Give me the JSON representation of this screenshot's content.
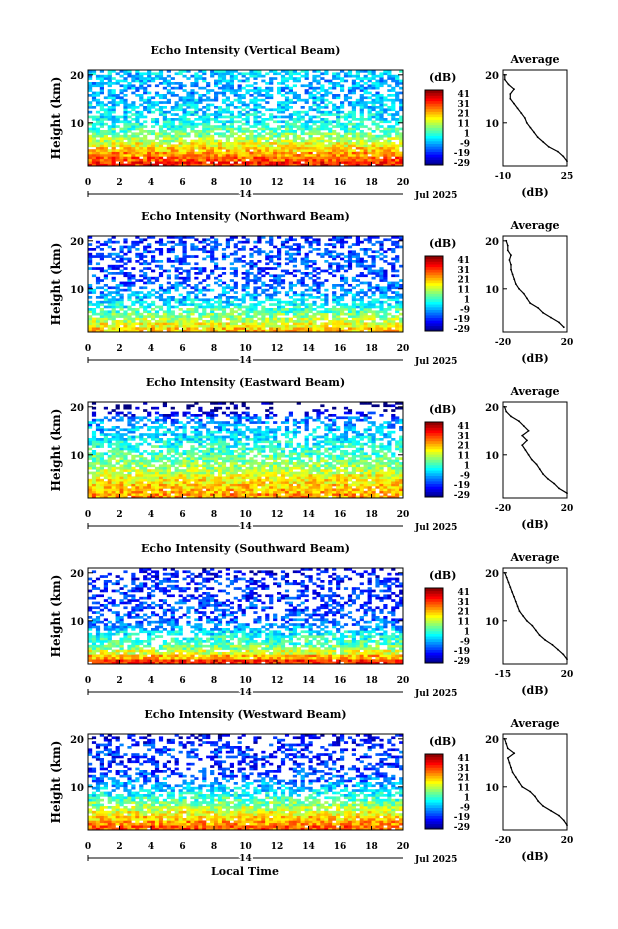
{
  "colorbar": {
    "unit": "(dB)",
    "ticks": [
      "41",
      "31",
      "21",
      "11",
      "1",
      "-9",
      "-19",
      "-29"
    ]
  },
  "shared": {
    "date": "Jul 2025",
    "day": "14",
    "x_label": "Local Time",
    "y_label": "Height (km)",
    "avg_title": "Average",
    "avg_xlabel": "(dB)"
  },
  "chart_data": [
    {
      "type": "heatmap",
      "title": "Echo Intensity (Vertical Beam)",
      "xlabel": "",
      "ylabel": "Height (km)",
      "x_ticks": [
        0,
        2,
        4,
        6,
        8,
        10,
        12,
        14,
        16,
        18,
        20
      ],
      "y_ticks": [
        10,
        20
      ],
      "xlim": [
        0,
        20
      ],
      "ylim": [
        1,
        21
      ],
      "color_range_db": [
        -29,
        41
      ],
      "profile_levels_db": [
        30,
        26,
        22,
        18,
        14,
        10,
        6,
        2,
        -1,
        -3,
        -4,
        -5,
        -6,
        -7,
        -8,
        -9,
        -9,
        -8,
        -7,
        -6
      ],
      "average": {
        "title": "Average",
        "xlabel": "(dB)",
        "x_ticks": [
          -10,
          25
        ],
        "xlim": [
          -10,
          25
        ],
        "y_ticks": [
          10,
          20
        ],
        "ylim": [
          1,
          21
        ],
        "height_km": [
          2,
          3,
          4,
          5,
          6,
          7,
          8,
          9,
          10,
          11,
          12,
          13,
          14,
          15,
          16,
          17,
          18,
          19,
          20
        ],
        "value_db": [
          25,
          23,
          20,
          15,
          12,
          9,
          7,
          5,
          3,
          2,
          0,
          -2,
          -4,
          -6,
          -6,
          -4,
          -7,
          -9,
          -9
        ]
      }
    },
    {
      "type": "heatmap",
      "title": "Echo Intensity (Northward Beam)",
      "xlabel": "",
      "ylabel": "Height (km)",
      "x_ticks": [
        0,
        2,
        4,
        6,
        8,
        10,
        12,
        14,
        16,
        18,
        20
      ],
      "y_ticks": [
        10,
        20
      ],
      "xlim": [
        0,
        20
      ],
      "ylim": [
        1,
        21
      ],
      "color_range_db": [
        -29,
        41
      ],
      "profile_levels_db": [
        18,
        14,
        10,
        6,
        2,
        -2,
        -5,
        -8,
        -10,
        -12,
        -14,
        -15,
        -16,
        -16,
        -15,
        -14,
        -15,
        -16,
        -17,
        -18
      ],
      "average": {
        "title": "Average",
        "xlabel": "(dB)",
        "x_ticks": [
          -20,
          20
        ],
        "xlim": [
          -20,
          20
        ],
        "y_ticks": [
          10,
          20
        ],
        "ylim": [
          1,
          21
        ],
        "height_km": [
          2,
          3,
          4,
          5,
          6,
          7,
          8,
          9,
          10,
          11,
          12,
          13,
          14,
          15,
          16,
          17,
          18,
          19,
          20
        ],
        "value_db": [
          18,
          15,
          10,
          5,
          2,
          -3,
          -5,
          -7,
          -10,
          -12,
          -13,
          -14,
          -15,
          -15,
          -16,
          -15,
          -17,
          -17,
          -18
        ]
      }
    },
    {
      "type": "heatmap",
      "title": "Echo Intensity (Eastward Beam)",
      "xlabel": "",
      "ylabel": "Height (km)",
      "x_ticks": [
        0,
        2,
        4,
        6,
        8,
        10,
        12,
        14,
        16,
        18,
        20
      ],
      "y_ticks": [
        10,
        20
      ],
      "xlim": [
        0,
        20
      ],
      "ylim": [
        1,
        21
      ],
      "color_range_db": [
        -29,
        41
      ],
      "profile_levels_db": [
        22,
        20,
        18,
        16,
        14,
        10,
        8,
        6,
        4,
        2,
        0,
        -2,
        -4,
        -6,
        -8,
        -10,
        -12,
        -20,
        -29,
        -29
      ],
      "average": {
        "title": "Average",
        "xlabel": "(dB)",
        "x_ticks": [
          -20,
          20
        ],
        "xlim": [
          -20,
          20
        ],
        "y_ticks": [
          10,
          20
        ],
        "ylim": [
          1,
          21
        ],
        "height_km": [
          2,
          3,
          4,
          5,
          6,
          7,
          8,
          9,
          10,
          11,
          12,
          13,
          14,
          15,
          16,
          17,
          18,
          19,
          20
        ],
        "value_db": [
          20,
          15,
          12,
          8,
          5,
          3,
          1,
          -2,
          -4,
          -6,
          -8,
          -5,
          -8,
          -4,
          -7,
          -10,
          -15,
          -18,
          -19
        ]
      }
    },
    {
      "type": "heatmap",
      "title": "Echo Intensity (Southward Beam)",
      "xlabel": "",
      "ylabel": "Height (km)",
      "x_ticks": [
        0,
        2,
        4,
        6,
        8,
        10,
        12,
        14,
        16,
        18,
        20
      ],
      "y_ticks": [
        10,
        20
      ],
      "xlim": [
        0,
        20
      ],
      "ylim": [
        1,
        21
      ],
      "color_range_db": [
        -29,
        41
      ],
      "profile_levels_db": [
        30,
        20,
        12,
        6,
        2,
        0,
        -4,
        -8,
        -12,
        -14,
        -15,
        -16,
        -16,
        -17,
        -18,
        -18,
        -17,
        -18,
        -20,
        -22
      ],
      "average": {
        "title": "Average",
        "xlabel": "(dB)",
        "x_ticks": [
          -15,
          20
        ],
        "xlim": [
          -15,
          20
        ],
        "y_ticks": [
          10,
          20
        ],
        "ylim": [
          1,
          21
        ],
        "height_km": [
          2,
          3,
          4,
          5,
          6,
          7,
          8,
          9,
          10,
          11,
          12,
          13,
          14,
          15,
          16,
          17,
          18,
          19,
          20
        ],
        "value_db": [
          20,
          18,
          15,
          12,
          8,
          5,
          3,
          1,
          -2,
          -4,
          -6,
          -7,
          -8,
          -9,
          -10,
          -11,
          -12,
          -13,
          -14
        ]
      }
    },
    {
      "type": "heatmap",
      "title": "Echo Intensity (Westward Beam)",
      "xlabel": "Local Time",
      "ylabel": "Height (km)",
      "x_ticks": [
        0,
        2,
        4,
        6,
        8,
        10,
        12,
        14,
        16,
        18,
        20
      ],
      "y_ticks": [
        10,
        20
      ],
      "xlim": [
        0,
        20
      ],
      "ylim": [
        1,
        21
      ],
      "color_range_db": [
        -29,
        41
      ],
      "profile_levels_db": [
        26,
        22,
        18,
        14,
        10,
        6,
        2,
        -2,
        -6,
        -9,
        -12,
        -14,
        -16,
        -18,
        -19,
        -17,
        -16,
        -18,
        -20,
        -22
      ],
      "average": {
        "title": "Average",
        "xlabel": "(dB)",
        "x_ticks": [
          -20,
          20
        ],
        "xlim": [
          -20,
          20
        ],
        "y_ticks": [
          10,
          20
        ],
        "ylim": [
          1,
          21
        ],
        "height_km": [
          2,
          3,
          4,
          5,
          6,
          7,
          8,
          9,
          10,
          11,
          12,
          13,
          14,
          15,
          16,
          17,
          18,
          19,
          20
        ],
        "value_db": [
          20,
          18,
          15,
          10,
          5,
          2,
          0,
          -3,
          -8,
          -10,
          -12,
          -14,
          -15,
          -16,
          -17,
          -13,
          -17,
          -18,
          -19
        ]
      }
    }
  ]
}
